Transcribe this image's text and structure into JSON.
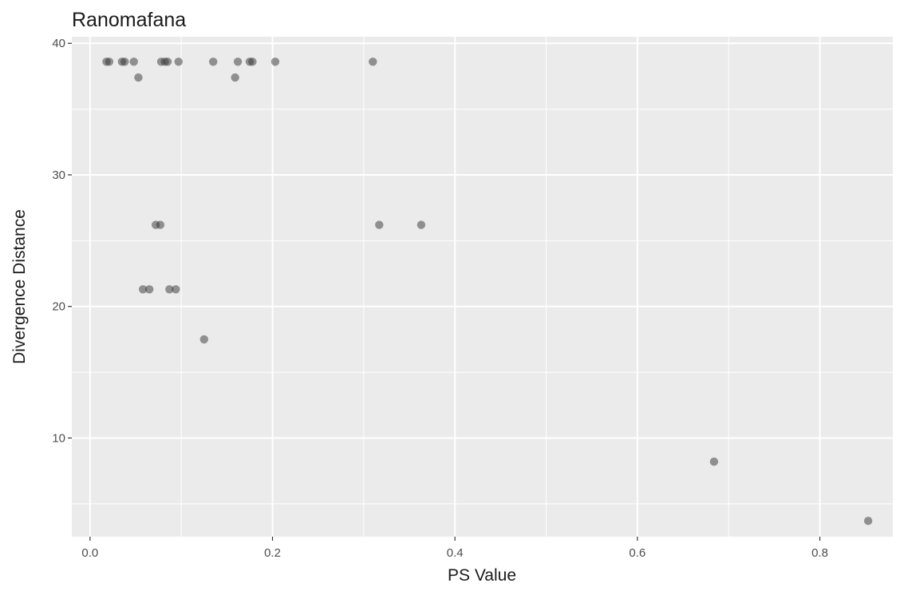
{
  "chart_data": {
    "type": "scatter",
    "title": "Ranomafana",
    "xlabel": "PS Value",
    "ylabel": "Divergence Distance",
    "xlim": [
      -0.02,
      0.88
    ],
    "ylim": [
      2.5,
      40.5
    ],
    "x_ticks": [
      0.0,
      0.2,
      0.4,
      0.6,
      0.8
    ],
    "x_tick_labels": [
      "0.0",
      "0.2",
      "0.4",
      "0.6",
      "0.8"
    ],
    "y_ticks": [
      10,
      20,
      30,
      40
    ],
    "y_tick_labels": [
      "10",
      "20",
      "30",
      "40"
    ],
    "grid": true,
    "background": "#ebebeb",
    "grid_color": "#ffffff",
    "point_color": "#333333",
    "point_opacity": 0.5,
    "points": [
      {
        "x": 0.018,
        "y": 38.6
      },
      {
        "x": 0.021,
        "y": 38.6
      },
      {
        "x": 0.035,
        "y": 38.6
      },
      {
        "x": 0.038,
        "y": 38.6
      },
      {
        "x": 0.048,
        "y": 38.6
      },
      {
        "x": 0.078,
        "y": 38.6
      },
      {
        "x": 0.082,
        "y": 38.6
      },
      {
        "x": 0.085,
        "y": 38.6
      },
      {
        "x": 0.097,
        "y": 38.6
      },
      {
        "x": 0.135,
        "y": 38.6
      },
      {
        "x": 0.162,
        "y": 38.6
      },
      {
        "x": 0.175,
        "y": 38.6
      },
      {
        "x": 0.178,
        "y": 38.6
      },
      {
        "x": 0.203,
        "y": 38.6
      },
      {
        "x": 0.31,
        "y": 38.6
      },
      {
        "x": 0.053,
        "y": 37.4
      },
      {
        "x": 0.159,
        "y": 37.4
      },
      {
        "x": 0.072,
        "y": 26.2
      },
      {
        "x": 0.077,
        "y": 26.2
      },
      {
        "x": 0.317,
        "y": 26.2
      },
      {
        "x": 0.363,
        "y": 26.2
      },
      {
        "x": 0.058,
        "y": 21.3
      },
      {
        "x": 0.065,
        "y": 21.3
      },
      {
        "x": 0.087,
        "y": 21.3
      },
      {
        "x": 0.094,
        "y": 21.3
      },
      {
        "x": 0.125,
        "y": 17.5
      },
      {
        "x": 0.684,
        "y": 8.2
      },
      {
        "x": 0.853,
        "y": 3.7
      }
    ]
  }
}
